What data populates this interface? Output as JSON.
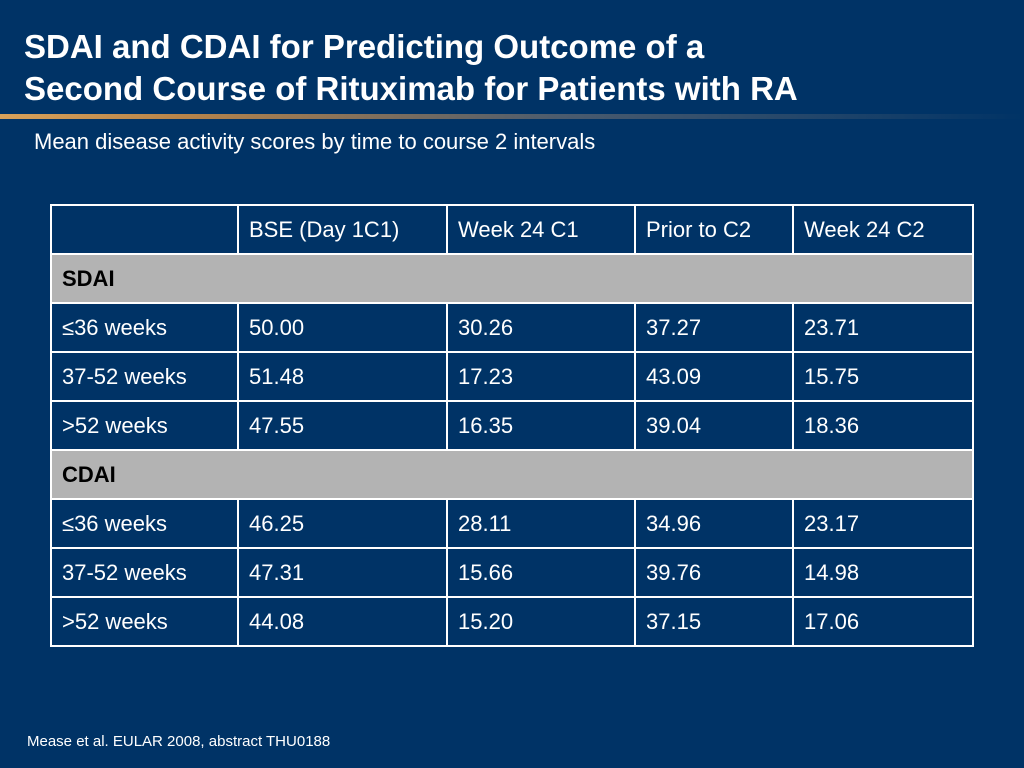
{
  "slide": {
    "title_line1": "SDAI and CDAI for Predicting Outcome of a",
    "title_line2": "Second Course of Rituximab for Patients with RA",
    "subtitle": "Mean disease activity scores by time to course 2 intervals",
    "footnote": "Mease et al. EULAR 2008, abstract THU0188"
  },
  "table": {
    "header": [
      "",
      "BSE (Day 1C1)",
      "Week 24 C1",
      "Prior to C2",
      "Week 24 C2"
    ],
    "sections": [
      {
        "name": "SDAI",
        "rows": [
          [
            "≤36 weeks",
            "50.00",
            "30.26",
            "37.27",
            "23.71"
          ],
          [
            "37-52 weeks",
            "51.48",
            "17.23",
            "43.09",
            "15.75"
          ],
          [
            ">52 weeks",
            "47.55",
            "16.35",
            "39.04",
            "18.36"
          ]
        ]
      },
      {
        "name": "CDAI",
        "rows": [
          [
            "≤36 weeks",
            "46.25",
            "28.11",
            "34.96",
            "23.17"
          ],
          [
            "37-52 weeks",
            "47.31",
            "15.66",
            "39.76",
            "14.98"
          ],
          [
            ">52 weeks",
            "44.08",
            "15.20",
            "37.15",
            "17.06"
          ]
        ]
      }
    ]
  },
  "colors": {
    "background": "#003366",
    "section_row": "#b3b3b3",
    "accent_rule": "#d9a25a"
  }
}
